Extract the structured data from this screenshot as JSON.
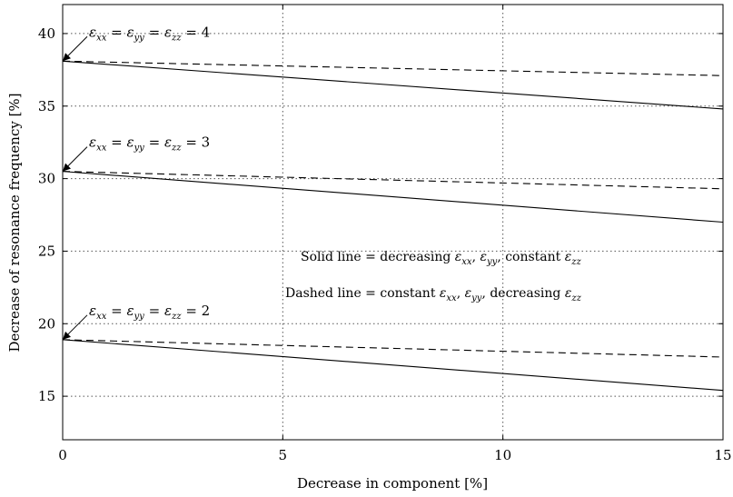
{
  "chart_data": {
    "type": "line",
    "xlabel": "Decrease in component [%]",
    "ylabel": "Decrease of resonance frequency  [%]",
    "xlim": [
      0,
      15
    ],
    "ylim": [
      12,
      42
    ],
    "xticks": [
      0,
      5,
      10,
      15
    ],
    "yticks": [
      15,
      20,
      25,
      30,
      35,
      40
    ],
    "grid": true,
    "series": [
      {
        "group": "4",
        "style": "solid",
        "x": [
          0,
          15
        ],
        "y": [
          38.1,
          34.8
        ]
      },
      {
        "group": "4",
        "style": "dashed",
        "x": [
          0,
          15
        ],
        "y": [
          38.1,
          37.1
        ]
      },
      {
        "group": "3",
        "style": "solid",
        "x": [
          0,
          15
        ],
        "y": [
          30.5,
          27.0
        ]
      },
      {
        "group": "3",
        "style": "dashed",
        "x": [
          0,
          15
        ],
        "y": [
          30.5,
          29.3
        ]
      },
      {
        "group": "2",
        "style": "solid",
        "x": [
          0,
          15
        ],
        "y": [
          18.9,
          15.4
        ]
      },
      {
        "group": "2",
        "style": "dashed",
        "x": [
          0,
          15
        ],
        "y": [
          18.9,
          17.7
        ]
      }
    ],
    "annotations": [
      {
        "id": "ann4",
        "prefix": "ε",
        "value": "4",
        "target": [
          0,
          38.1
        ]
      },
      {
        "id": "ann3",
        "prefix": "ε",
        "value": "3",
        "target": [
          0,
          30.5
        ]
      },
      {
        "id": "ann2",
        "prefix": "ε",
        "value": "2",
        "target": [
          0,
          18.9
        ]
      }
    ],
    "notes": {
      "solid": {
        "a": "Solid line = decreasing ",
        "b": ", constant "
      },
      "dashed": {
        "a": "Dashed line = constant ",
        "b": ", decreasing "
      }
    },
    "subscripts": {
      "xx": "xx",
      "yy": "yy",
      "zz": "zz"
    },
    "eps": "ε",
    "eq": " = ",
    "comma": ", "
  }
}
